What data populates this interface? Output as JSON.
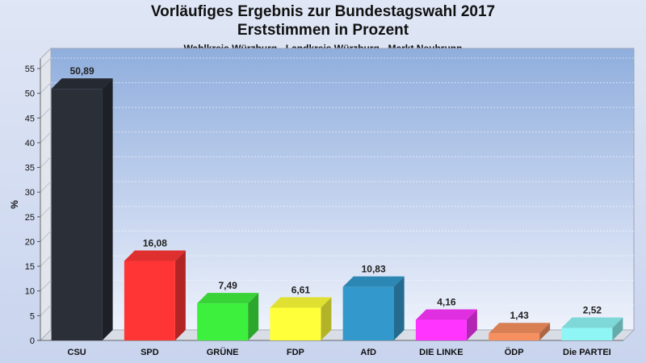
{
  "chart_data": {
    "type": "bar",
    "title": "Vorläufiges Ergebnis zur Bundestagswahl 2017",
    "title_line2": "Erststimmen in Prozent",
    "subtitle": "Wahlkreis Würzburg - Landkreis Würzburg - Markt Neubrunn",
    "ylabel": "%",
    "xlabel": "",
    "ylim": [
      0,
      55
    ],
    "yticks": [
      0,
      5,
      10,
      15,
      20,
      25,
      30,
      35,
      40,
      45,
      50,
      55
    ],
    "categories": [
      "CSU",
      "SPD",
      "GRÜNE",
      "FDP",
      "AfD",
      "DIE LINKE",
      "ÖDP",
      "Die PARTEI"
    ],
    "values": [
      50.89,
      16.08,
      7.49,
      6.61,
      10.83,
      4.16,
      1.43,
      2.52
    ],
    "value_labels": [
      "50,89",
      "16,08",
      "7,49",
      "6,61",
      "10,83",
      "4,16",
      "1,43",
      "2,52"
    ],
    "colors": [
      "#2a2f38",
      "#ff3535",
      "#3ef03e",
      "#ffff3a",
      "#3399cc",
      "#ff35ff",
      "#f79060",
      "#8ff5f5"
    ],
    "grid": true,
    "legend": "none"
  }
}
